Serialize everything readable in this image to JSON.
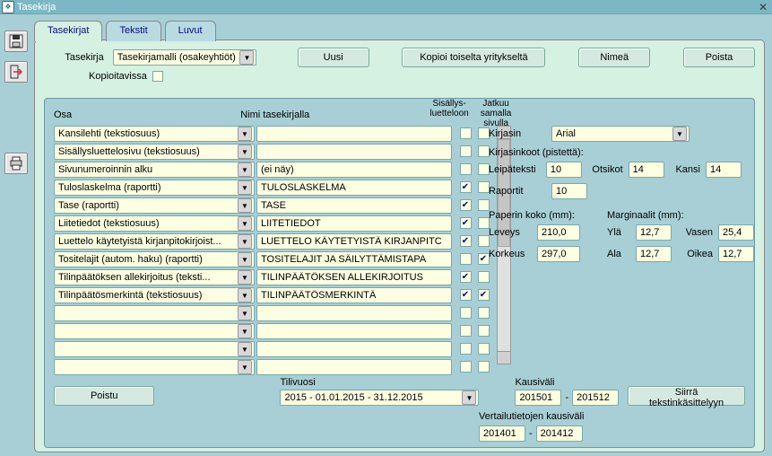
{
  "window": {
    "title": "Tasekirja"
  },
  "tabs": [
    "Tasekirjat",
    "Tekstit",
    "Luvut"
  ],
  "top": {
    "tasekirja_label": "Tasekirja",
    "tasekirja_value": "Tasekirjamalli (osakeyhtiöt)",
    "uusi": "Uusi",
    "kopioi": "Kopioi toiselta yritykseltä",
    "nimea": "Nimeä",
    "poista": "Poista",
    "kopioitavissa_label": "Kopioitavissa"
  },
  "headers": {
    "osa": "Osa",
    "nimi": "Nimi tasekirjalla",
    "sisallys1": "Sisällys-",
    "sisallys2": "luetteloon",
    "jatkuu1": "Jatkuu samalla",
    "jatkuu2": "sivulla"
  },
  "rows": [
    {
      "osa": "Kansilehti   (tekstiosuus)",
      "nimi": "",
      "c1": false,
      "c2": false
    },
    {
      "osa": "Sisällysluettelosivu   (tekstiosuus)",
      "nimi": "",
      "c1": false,
      "c2": false
    },
    {
      "osa": "Sivunumeroinnin alku",
      "nimi": "(ei näy)",
      "c1": false,
      "c2": false
    },
    {
      "osa": "Tuloslaskelma   (raportti)",
      "nimi": "TULOSLASKELMA",
      "c1": true,
      "c2": false
    },
    {
      "osa": "Tase   (raportti)",
      "nimi": "TASE",
      "c1": true,
      "c2": false
    },
    {
      "osa": "Liitetiedot   (tekstiosuus)",
      "nimi": "LIITETIEDOT",
      "c1": true,
      "c2": false
    },
    {
      "osa": "Luettelo käytetyistä kirjanpitokirjoist...",
      "nimi": "LUETTELO KÄYTETYISTÄ KIRJANPITC",
      "c1": true,
      "c2": false
    },
    {
      "osa": "Tositelajit (autom. haku)   (raportti)",
      "nimi": "TOSITELAJIT JA SÄILYTTÄMISTAPA",
      "c1": false,
      "c2": true
    },
    {
      "osa": "Tilinpäätöksen allekirjoitus   (teksti...",
      "nimi": "TILINPÄÄTÖKSEN ALLEKIRJOITUS",
      "c1": true,
      "c2": false
    },
    {
      "osa": "Tilinpäätösmerkintä   (tekstiosuus)",
      "nimi": "TILINPÄÄTÖSMERKINTÄ",
      "c1": true,
      "c2": true
    },
    {
      "osa": "",
      "nimi": "",
      "c1": false,
      "c2": false
    },
    {
      "osa": "",
      "nimi": "",
      "c1": false,
      "c2": false
    },
    {
      "osa": "",
      "nimi": "",
      "c1": false,
      "c2": false
    },
    {
      "osa": "",
      "nimi": "",
      "c1": false,
      "c2": false
    }
  ],
  "right": {
    "kirjasin_label": "Kirjasin",
    "kirjasin_value": "Arial",
    "koot_label": "Kirjasinkoot (pistettä):",
    "leipa_label": "Leipäteksti",
    "leipa": "10",
    "otsikot_label": "Otsikot",
    "otsikot": "14",
    "kansi_label": "Kansi",
    "kansi": "14",
    "raportit_label": "Raportit",
    "raportit": "10",
    "paperi_label": "Paperin koko (mm):",
    "marg_label": "Marginaalit (mm):",
    "leveys_label": "Leveys",
    "leveys": "210,0",
    "korkeus_label": "Korkeus",
    "korkeus": "297,0",
    "yla_label": "Ylä",
    "yla": "12,7",
    "ala_label": "Ala",
    "ala": "12,7",
    "vasen_label": "Vasen",
    "vasen": "25,4",
    "oikea_label": "Oikea",
    "oikea": "12,7"
  },
  "bottom": {
    "poistu": "Poistu",
    "tilivuosi_label": "Tilivuosi",
    "tilivuosi_value": "2015 - 01.01.2015 - 31.12.2015",
    "kausivali_label": "Kausiväli",
    "k1": "201501",
    "k2": "201512",
    "siirra": "Siirrä tekstinkäsittelyyn",
    "vert_label": "Vertailutietojen kausiväli",
    "v1": "201401",
    "v2": "201412"
  }
}
